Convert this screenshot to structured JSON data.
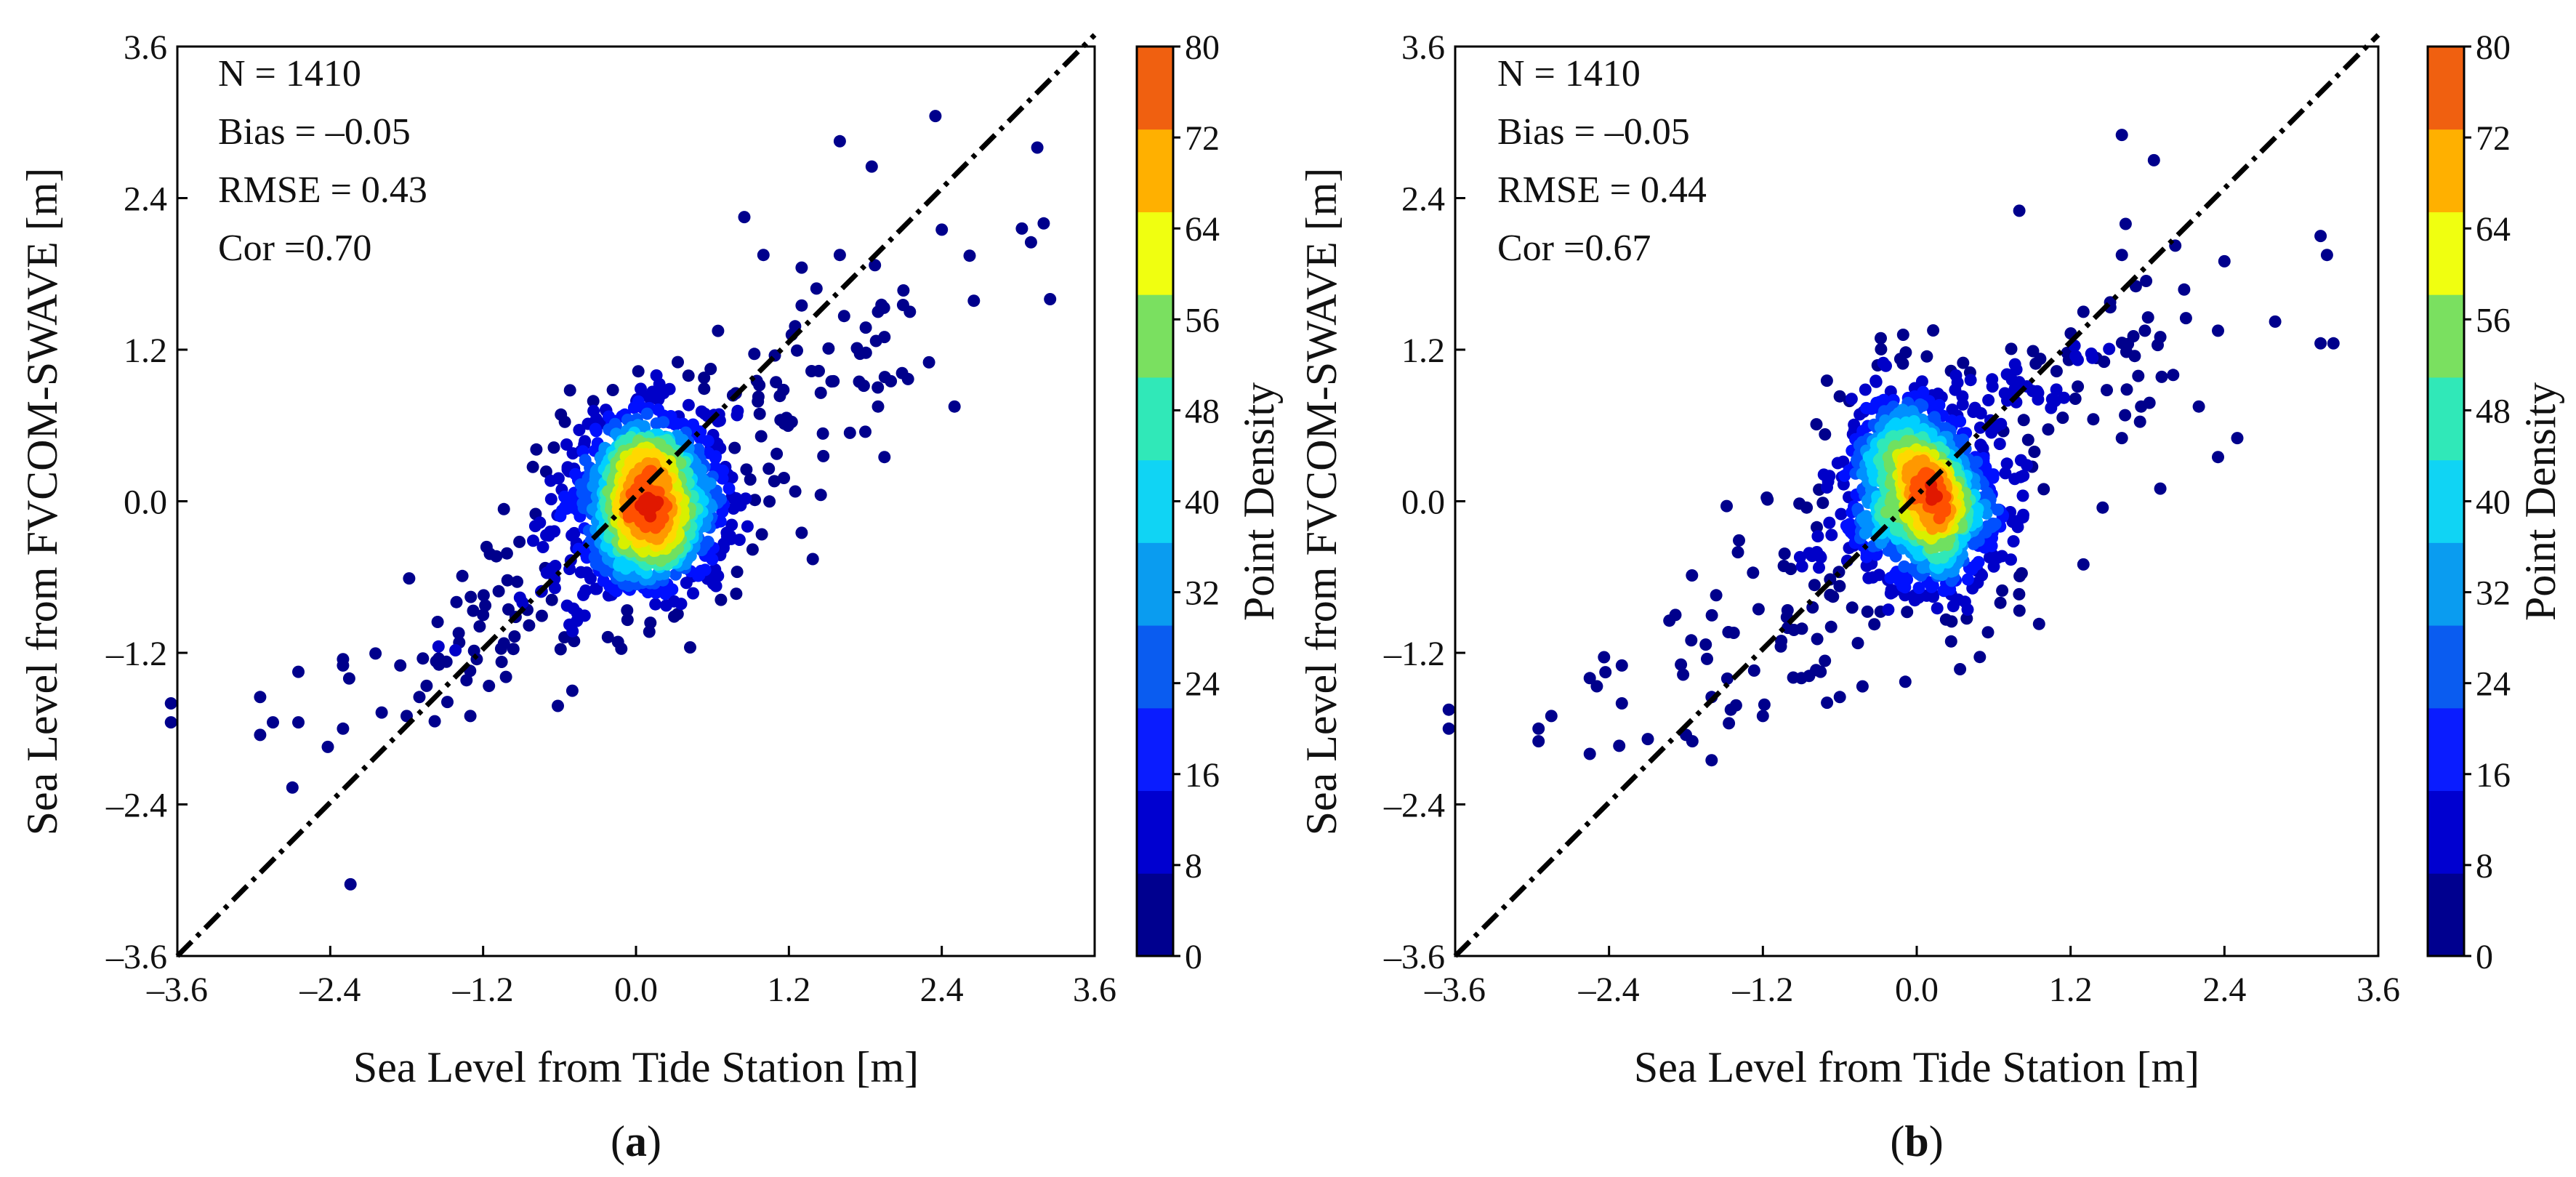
{
  "colorbar": {
    "label": "Point Density",
    "ticks": [
      "0",
      "8",
      "16",
      "24",
      "32",
      "40",
      "48",
      "56",
      "64",
      "72",
      "80"
    ],
    "min": 0,
    "max": 80,
    "step": 8,
    "colors": [
      "#00008c",
      "#0000c8",
      "#0010ff",
      "#0050ff",
      "#0090ff",
      "#00d0ff",
      "#30e8b8",
      "#70e060",
      "#d8f000",
      "#ffd800",
      "#ff9800",
      "#ff5000",
      "#e01800"
    ],
    "band_colors": [
      "#00008f",
      "#0000d0",
      "#0a1cff",
      "#0a5cf0",
      "#0a9cf0",
      "#10d4f4",
      "#30e8b8",
      "#7ae060",
      "#f0ff10",
      "#ffb000",
      "#f06010"
    ]
  },
  "chart_data": [
    {
      "type": "scatter",
      "panel_label": "(a)",
      "label_letter": "a",
      "xlabel": "Sea Level from Tide Station [m]",
      "ylabel": "Sea Level from FVCOM-SWAVE [m]",
      "xlim": [
        -3.6,
        3.6
      ],
      "ylim": [
        -3.6,
        3.6
      ],
      "xticks": [
        "-3.6",
        "-2.4",
        "-1.2",
        "0.0",
        "1.2",
        "2.4",
        "3.6"
      ],
      "yticks": [
        "-3.6",
        "-2.4",
        "-1.2",
        "0.0",
        "1.2",
        "2.4",
        "3.6"
      ],
      "reference_line": "1:1 dash-dot",
      "stats": [
        "N = 1410",
        "Bias = –0.05",
        "RMSE = 0.43",
        "Cor =0.70"
      ],
      "n_points": 1410,
      "core": {
        "center": [
          0.1,
          0.0
        ],
        "spread": [
          0.32,
          0.45
        ],
        "rotation_deg": 52
      },
      "outliers": [
        [
          2.35,
          3.05
        ],
        [
          1.6,
          2.85
        ],
        [
          1.85,
          2.65
        ],
        [
          3.15,
          2.8
        ],
        [
          3.2,
          2.2
        ],
        [
          3.1,
          2.05
        ],
        [
          3.25,
          1.6
        ],
        [
          0.85,
          2.25
        ],
        [
          2.4,
          2.15
        ],
        [
          1.0,
          1.95
        ],
        [
          1.6,
          1.95
        ],
        [
          1.3,
          1.85
        ],
        [
          1.3,
          1.55
        ],
        [
          1.9,
          1.5
        ],
        [
          2.15,
          1.5
        ],
        [
          1.95,
          1.3
        ],
        [
          2.3,
          1.1
        ],
        [
          2.0,
          0.95
        ],
        [
          2.5,
          0.75
        ],
        [
          1.9,
          0.75
        ],
        [
          1.55,
          0.95
        ],
        [
          1.8,
          0.55
        ],
        [
          1.95,
          0.35
        ],
        [
          1.45,
          0.05
        ],
        [
          1.3,
          -0.25
        ],
        [
          -3.65,
          -1.6
        ],
        [
          -3.65,
          -1.75
        ],
        [
          -2.95,
          -1.55
        ],
        [
          -2.95,
          -1.85
        ],
        [
          -2.85,
          -1.75
        ],
        [
          -2.65,
          -1.35
        ],
        [
          -2.65,
          -1.75
        ],
        [
          -2.3,
          -1.3
        ],
        [
          -2.3,
          -1.8
        ],
        [
          -2.3,
          -1.25
        ],
        [
          -1.85,
          -1.3
        ],
        [
          -1.8,
          -1.7
        ],
        [
          -1.7,
          -1.55
        ],
        [
          -1.55,
          -1.15
        ],
        [
          -1.3,
          -1.7
        ],
        [
          -1.25,
          -1.25
        ],
        [
          -1.2,
          -0.9
        ],
        [
          -0.5,
          -1.5
        ]
      ]
    },
    {
      "type": "scatter",
      "panel_label": "(b)",
      "label_letter": "b",
      "xlabel": "Sea Level from Tide Station [m]",
      "ylabel": "Sea Level from FVCOM-SWAVE [m]",
      "xlim": [
        -3.6,
        3.6
      ],
      "ylim": [
        -3.6,
        3.6
      ],
      "xticks": [
        "-3.6",
        "-2.4",
        "-1.2",
        "0.0",
        "1.2",
        "2.4",
        "3.6"
      ],
      "yticks": [
        "-3.6",
        "-2.4",
        "-1.2",
        "0.0",
        "1.2",
        "2.4",
        "3.6"
      ],
      "reference_line": "1:1 dash-dot",
      "stats": [
        "N = 1410",
        "Bias = –0.05",
        "RMSE = 0.44",
        "Cor =0.67"
      ],
      "n_points": 1410,
      "core": {
        "center": [
          0.05,
          0.05
        ],
        "spread": [
          0.3,
          0.5
        ],
        "rotation_deg": 50
      },
      "outliers": [
        [
          1.6,
          2.9
        ],
        [
          1.85,
          2.7
        ],
        [
          0.8,
          2.3
        ],
        [
          3.15,
          2.1
        ],
        [
          3.2,
          1.95
        ],
        [
          1.6,
          1.95
        ],
        [
          2.4,
          1.9
        ],
        [
          1.3,
          1.5
        ],
        [
          2.1,
          1.45
        ],
        [
          1.9,
          1.3
        ],
        [
          2.35,
          1.35
        ],
        [
          3.15,
          1.25
        ],
        [
          3.25,
          1.25
        ],
        [
          1.7,
          1.15
        ],
        [
          2.0,
          1.0
        ],
        [
          2.2,
          0.75
        ],
        [
          1.75,
          0.75
        ],
        [
          1.6,
          0.5
        ],
        [
          2.5,
          0.5
        ],
        [
          2.35,
          0.35
        ],
        [
          1.9,
          0.1
        ],
        [
          1.45,
          -0.05
        ],
        [
          1.3,
          -0.5
        ],
        [
          -3.65,
          -1.65
        ],
        [
          -3.65,
          -1.8
        ],
        [
          -2.95,
          -1.8
        ],
        [
          -2.95,
          -1.9
        ],
        [
          -2.85,
          -1.7
        ],
        [
          -2.55,
          -1.4
        ],
        [
          -2.55,
          -2.0
        ],
        [
          -2.3,
          -1.3
        ],
        [
          -2.3,
          -1.6
        ],
        [
          -1.8,
          -1.85
        ],
        [
          -1.75,
          -1.9
        ],
        [
          -1.6,
          -1.55
        ],
        [
          -1.6,
          -2.05
        ],
        [
          -1.45,
          -1.65
        ],
        [
          -1.2,
          -1.7
        ],
        [
          -0.6,
          -1.55
        ],
        [
          -0.75,
          -1.35
        ],
        [
          -0.9,
          -1.4
        ]
      ]
    }
  ]
}
